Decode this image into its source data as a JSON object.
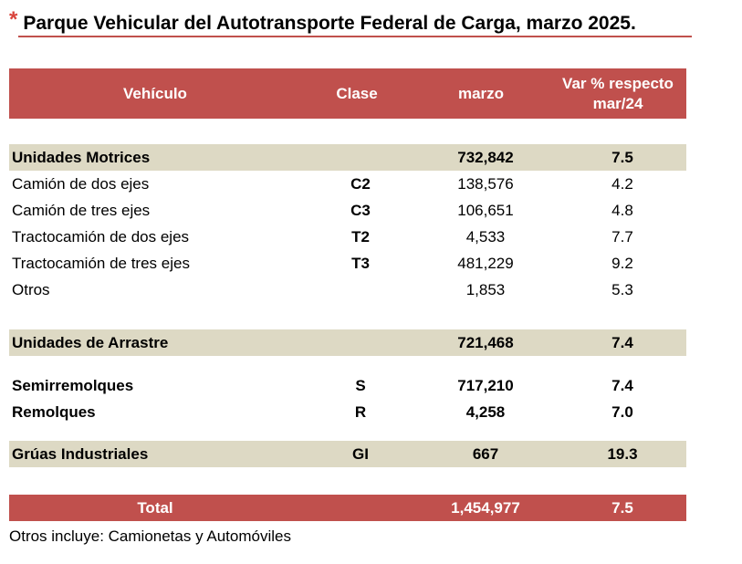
{
  "title": {
    "asterisk": "*",
    "text": "Parque Vehicular del Autotransporte Federal de Carga, marzo 2025."
  },
  "header": {
    "vehiculo": "Vehículo",
    "clase": "Clase",
    "marzo": "marzo",
    "var_line1": "Var % respecto",
    "var_line2": "mar/24"
  },
  "rows": [
    {
      "vehiculo": "Unidades Motrices",
      "clase": "",
      "marzo": "732,842",
      "var": "7.5"
    },
    {
      "vehiculo": "Camión de dos ejes",
      "clase": "C2",
      "marzo": "138,576",
      "var": "4.2"
    },
    {
      "vehiculo": "Camión de tres ejes",
      "clase": "C3",
      "marzo": "106,651",
      "var": "4.8"
    },
    {
      "vehiculo": "Tractocamión de dos ejes",
      "clase": "T2",
      "marzo": "4,533",
      "var": "7.7"
    },
    {
      "vehiculo": "Tractocamión de tres ejes",
      "clase": "T3",
      "marzo": "481,229",
      "var": "9.2"
    },
    {
      "vehiculo": "Otros",
      "clase": "",
      "marzo": "1,853",
      "var": "5.3"
    },
    {
      "vehiculo": "Unidades de Arrastre",
      "clase": "",
      "marzo": "721,468",
      "var": "7.4"
    },
    {
      "vehiculo": "Semirremolques",
      "clase": "S",
      "marzo": "717,210",
      "var": "7.4"
    },
    {
      "vehiculo": "Remolques",
      "clase": "R",
      "marzo": "4,258",
      "var": "7.0"
    },
    {
      "vehiculo": "Grúas Industriales",
      "clase": "GI",
      "marzo": "667",
      "var": "19.3"
    }
  ],
  "total": {
    "label": "Total",
    "marzo": "1,454,977",
    "var": "7.5"
  },
  "note": "Otros incluye: Camionetas y Automóviles"
}
